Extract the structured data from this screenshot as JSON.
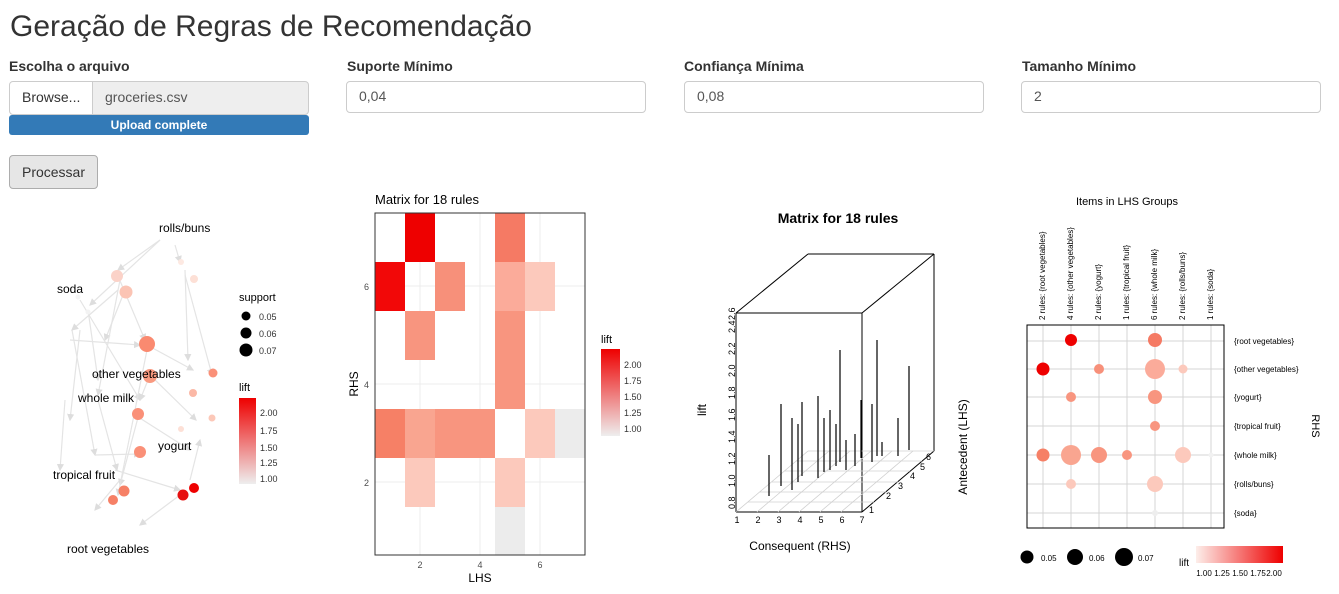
{
  "app_title": "Geração de Regras de Recomendação",
  "file_input": {
    "label": "Escolha o arquivo",
    "browse_label": "Browse...",
    "filename": "groceries.csv",
    "progress_text": "Upload complete"
  },
  "support": {
    "label": "Suporte Mínimo",
    "value": "0,04"
  },
  "confidence": {
    "label": "Confiança Mínima",
    "value": "0,08"
  },
  "size": {
    "label": "Tamanho Mínimo",
    "value": "2"
  },
  "process_button": "Processar",
  "graph": {
    "nodes": [
      "rolls/buns",
      "soda",
      "other vegetables",
      "whole milk",
      "yogurt",
      "tropical fruit",
      "root vegetables"
    ],
    "legend_support_title": "support",
    "legend_support": [
      "0.05",
      "0.06",
      "0.07"
    ],
    "legend_lift_title": "lift",
    "legend_lift": [
      "2.00",
      "1.75",
      "1.50",
      "1.25",
      "1.00"
    ]
  },
  "matrix": {
    "title": "Matrix for 18 rules",
    "xlabel": "LHS",
    "ylabel": "RHS",
    "xticks": [
      "2",
      "4",
      "6"
    ],
    "yticks": [
      "2",
      "4",
      "6"
    ],
    "legend_title": "lift",
    "legend_ticks": [
      "2.00",
      "1.75",
      "1.50",
      "1.25",
      "1.00"
    ]
  },
  "matrix3d": {
    "title": "Matrix for 18 rules",
    "zlabel": "lift",
    "xlabel": "Consequent (RHS)",
    "ylabel": "Antecedent (LHS)",
    "zticks": [
      "0.8",
      "1.0",
      "1.2",
      "1.4",
      "1.6",
      "1.8",
      "2.0",
      "2.2",
      "2.4",
      "2.6"
    ],
    "xticks": [
      "1",
      "2",
      "3",
      "4",
      "5",
      "6",
      "7"
    ],
    "yticks": [
      "1",
      "2",
      "3",
      "4",
      "5",
      "6"
    ]
  },
  "grouped": {
    "title": "Items in LHS Groups",
    "columns": [
      "2 rules: {root vegetables}",
      "4 rules: {other vegetables}",
      "2 rules: {yogurt}",
      "1 rules: {tropical fruit}",
      "6 rules: {whole milk}",
      "2 rules: {rolls/buns}",
      "1 rules: {soda}"
    ],
    "rows": [
      "{root vegetables}",
      "{other vegetables}",
      "{yogurt}",
      "{tropical fruit}",
      "{whole milk}",
      "{rolls/buns}",
      "{soda}"
    ],
    "ylabel": "RHS",
    "legend_support": [
      "0.05",
      "0.06",
      "0.07"
    ],
    "legend_lift_title": "lift",
    "legend_lift": [
      "1.00",
      "1.25",
      "1.50",
      "1.75",
      "2.00"
    ]
  },
  "colors": {
    "accent": "#337ab7",
    "lift_high": "#ee0000",
    "lift_low": "#eeeeee"
  }
}
